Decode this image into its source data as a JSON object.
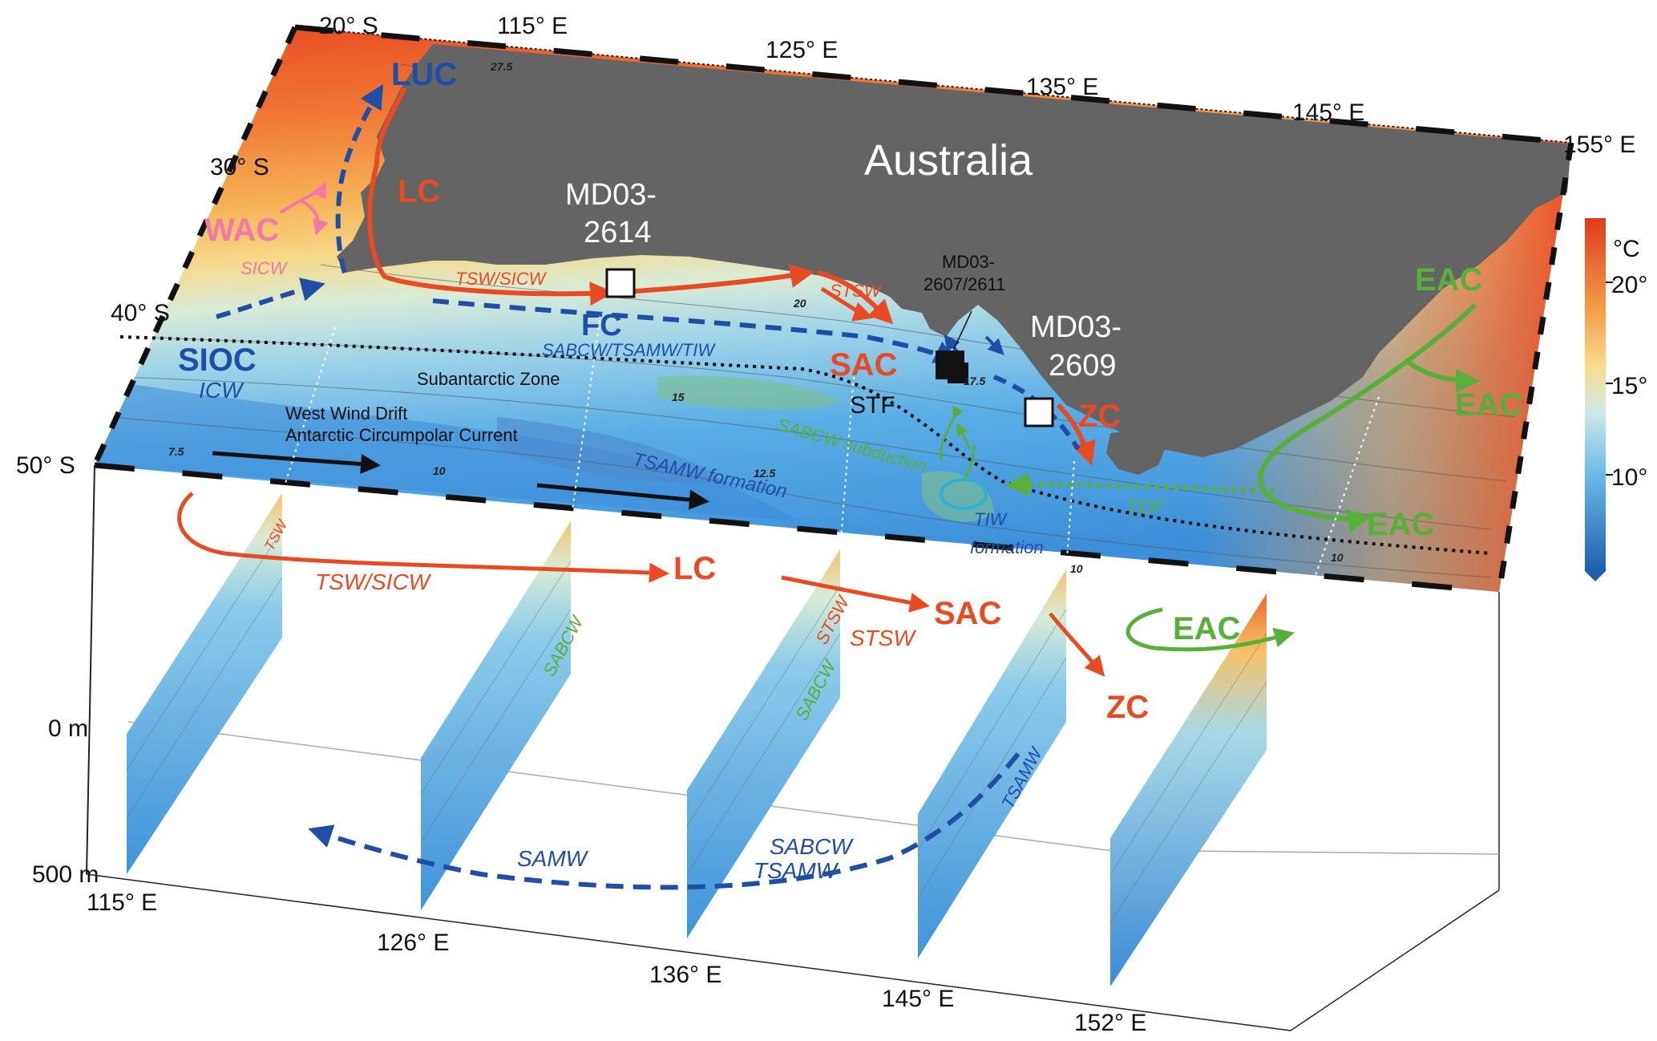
{
  "map": {
    "continent_label": "Australia",
    "latitude_labels": [
      "20° S",
      "30° S",
      "40° S",
      "50° S"
    ],
    "longitude_labels_top": [
      "115° E",
      "125° E",
      "135° E",
      "145° E",
      "155° E"
    ],
    "longitude_labels_bottom": [
      "115° E",
      "126° E",
      "136° E",
      "145° E",
      "152° E"
    ],
    "depth_labels": [
      "0 m",
      "500 m"
    ],
    "colorbar": {
      "unit": "°C",
      "ticks": [
        "20°",
        "15°",
        "10°"
      ],
      "warm_color": "#e84a22",
      "cold_color": "#1f5fae"
    },
    "contour_labels": [
      "27.5",
      "20",
      "17.5",
      "15",
      "12.5",
      "10",
      "7.5",
      "10",
      "10"
    ],
    "cores": {
      "core_2614_line1": "MD03-",
      "core_2614_line2": "2614",
      "core_2607_line1": "MD03-",
      "core_2607_line2": "2607/2611",
      "core_2609_line1": "MD03-",
      "core_2609_line2": "2609"
    },
    "zones": {
      "subantarctic": "Subantarctic Zone",
      "wwd": "West Wind Drift",
      "acc": "Antarctic Circumpolar Current",
      "stf": "STF"
    }
  },
  "currents": {
    "luc": "LUC",
    "lc_top": "LC",
    "wac": "WAC",
    "fc": "FC",
    "sioc": "SIOC",
    "sac_top": "SAC",
    "zc_top": "ZC",
    "eac_1": "EAC",
    "eac_2": "EAC",
    "eac_3": "EAC",
    "lc_front": "LC",
    "sac_front": "SAC",
    "zc_front": "ZC",
    "eac_front": "EAC"
  },
  "water_masses": {
    "sicw": "SICW",
    "icw": "ICW",
    "tsw_sicw_top": "TSW/SICW",
    "stsw_top": "STSW",
    "sabcw_tsamw_tiw": "SABCW/TSAMW/TIW",
    "sabcw_subduction": "SABCW subduction",
    "tsamw_formation": "TSAMW formation",
    "tiw_formation_1": "TIW",
    "tiw_formation_2": "formation",
    "tof": "TOF",
    "tsw_slice": "TSW",
    "tsw_sicw_front": "TSW/SICW",
    "sabcw_slice2": "SABCW",
    "stsw_slice3": "STSW",
    "sabcw_slice3": "SABCW",
    "stsw_front": "STSW",
    "tsamw_slice4": "TSAMW",
    "samw": "SAMW",
    "sabcw_deep": "SABCW",
    "tsamw_deep": "TSAMW"
  }
}
